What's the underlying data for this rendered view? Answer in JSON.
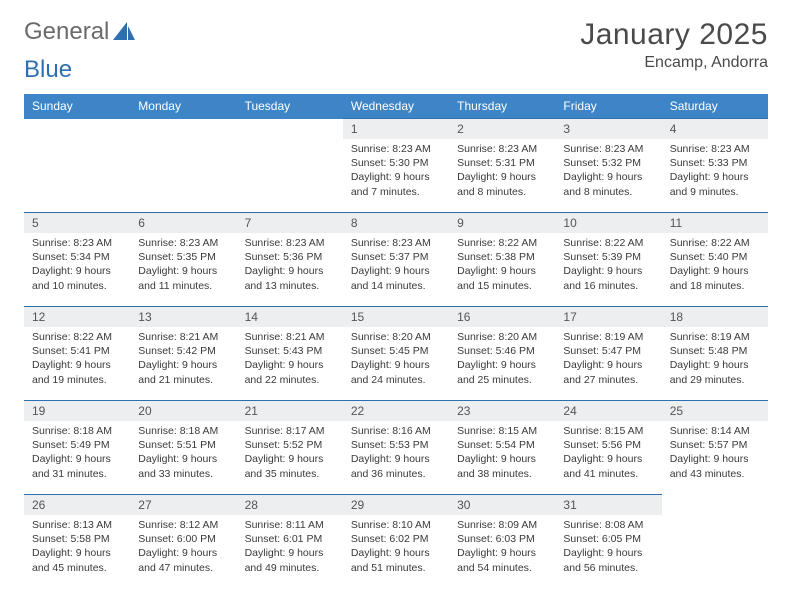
{
  "logo": {
    "word1": "General",
    "word2": "Blue",
    "icon_color": "#2f6fb0"
  },
  "header": {
    "title": "January 2025",
    "location": "Encamp, Andorra"
  },
  "calendar": {
    "header_bg": "#3d85c6",
    "header_text": "#ffffff",
    "row_border": "#2f6fb0",
    "daynum_bg": "#eceef0",
    "text_color": "#3a3a3a",
    "font_size_header": 12,
    "font_size_daynum": 12,
    "font_size_body": 10.5,
    "day_names": [
      "Sunday",
      "Monday",
      "Tuesday",
      "Wednesday",
      "Thursday",
      "Friday",
      "Saturday"
    ],
    "weeks": [
      [
        null,
        null,
        null,
        {
          "n": "1",
          "sr": "8:23 AM",
          "ss": "5:30 PM",
          "dl": "9 hours and 7 minutes."
        },
        {
          "n": "2",
          "sr": "8:23 AM",
          "ss": "5:31 PM",
          "dl": "9 hours and 8 minutes."
        },
        {
          "n": "3",
          "sr": "8:23 AM",
          "ss": "5:32 PM",
          "dl": "9 hours and 8 minutes."
        },
        {
          "n": "4",
          "sr": "8:23 AM",
          "ss": "5:33 PM",
          "dl": "9 hours and 9 minutes."
        }
      ],
      [
        {
          "n": "5",
          "sr": "8:23 AM",
          "ss": "5:34 PM",
          "dl": "9 hours and 10 minutes."
        },
        {
          "n": "6",
          "sr": "8:23 AM",
          "ss": "5:35 PM",
          "dl": "9 hours and 11 minutes."
        },
        {
          "n": "7",
          "sr": "8:23 AM",
          "ss": "5:36 PM",
          "dl": "9 hours and 13 minutes."
        },
        {
          "n": "8",
          "sr": "8:23 AM",
          "ss": "5:37 PM",
          "dl": "9 hours and 14 minutes."
        },
        {
          "n": "9",
          "sr": "8:22 AM",
          "ss": "5:38 PM",
          "dl": "9 hours and 15 minutes."
        },
        {
          "n": "10",
          "sr": "8:22 AM",
          "ss": "5:39 PM",
          "dl": "9 hours and 16 minutes."
        },
        {
          "n": "11",
          "sr": "8:22 AM",
          "ss": "5:40 PM",
          "dl": "9 hours and 18 minutes."
        }
      ],
      [
        {
          "n": "12",
          "sr": "8:22 AM",
          "ss": "5:41 PM",
          "dl": "9 hours and 19 minutes."
        },
        {
          "n": "13",
          "sr": "8:21 AM",
          "ss": "5:42 PM",
          "dl": "9 hours and 21 minutes."
        },
        {
          "n": "14",
          "sr": "8:21 AM",
          "ss": "5:43 PM",
          "dl": "9 hours and 22 minutes."
        },
        {
          "n": "15",
          "sr": "8:20 AM",
          "ss": "5:45 PM",
          "dl": "9 hours and 24 minutes."
        },
        {
          "n": "16",
          "sr": "8:20 AM",
          "ss": "5:46 PM",
          "dl": "9 hours and 25 minutes."
        },
        {
          "n": "17",
          "sr": "8:19 AM",
          "ss": "5:47 PM",
          "dl": "9 hours and 27 minutes."
        },
        {
          "n": "18",
          "sr": "8:19 AM",
          "ss": "5:48 PM",
          "dl": "9 hours and 29 minutes."
        }
      ],
      [
        {
          "n": "19",
          "sr": "8:18 AM",
          "ss": "5:49 PM",
          "dl": "9 hours and 31 minutes."
        },
        {
          "n": "20",
          "sr": "8:18 AM",
          "ss": "5:51 PM",
          "dl": "9 hours and 33 minutes."
        },
        {
          "n": "21",
          "sr": "8:17 AM",
          "ss": "5:52 PM",
          "dl": "9 hours and 35 minutes."
        },
        {
          "n": "22",
          "sr": "8:16 AM",
          "ss": "5:53 PM",
          "dl": "9 hours and 36 minutes."
        },
        {
          "n": "23",
          "sr": "8:15 AM",
          "ss": "5:54 PM",
          "dl": "9 hours and 38 minutes."
        },
        {
          "n": "24",
          "sr": "8:15 AM",
          "ss": "5:56 PM",
          "dl": "9 hours and 41 minutes."
        },
        {
          "n": "25",
          "sr": "8:14 AM",
          "ss": "5:57 PM",
          "dl": "9 hours and 43 minutes."
        }
      ],
      [
        {
          "n": "26",
          "sr": "8:13 AM",
          "ss": "5:58 PM",
          "dl": "9 hours and 45 minutes."
        },
        {
          "n": "27",
          "sr": "8:12 AM",
          "ss": "6:00 PM",
          "dl": "9 hours and 47 minutes."
        },
        {
          "n": "28",
          "sr": "8:11 AM",
          "ss": "6:01 PM",
          "dl": "9 hours and 49 minutes."
        },
        {
          "n": "29",
          "sr": "8:10 AM",
          "ss": "6:02 PM",
          "dl": "9 hours and 51 minutes."
        },
        {
          "n": "30",
          "sr": "8:09 AM",
          "ss": "6:03 PM",
          "dl": "9 hours and 54 minutes."
        },
        {
          "n": "31",
          "sr": "8:08 AM",
          "ss": "6:05 PM",
          "dl": "9 hours and 56 minutes."
        },
        null
      ]
    ],
    "labels": {
      "sunrise": "Sunrise:",
      "sunset": "Sunset:",
      "daylight": "Daylight:"
    }
  }
}
